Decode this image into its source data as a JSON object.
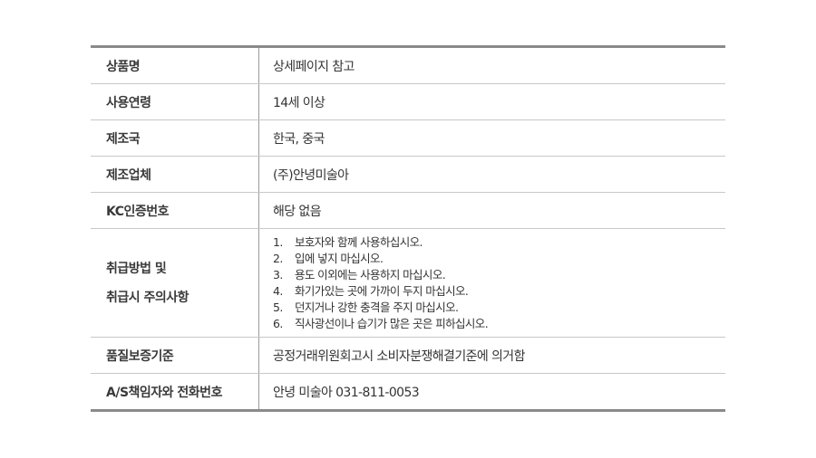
{
  "rows": [
    {
      "label": "상품명",
      "value": "상세페이지 참고"
    },
    {
      "label": "사용연령",
      "value": "14세 이상"
    },
    {
      "label": "제조국",
      "value": "한국, 중국"
    },
    {
      "label": "제조업체",
      "value": "(주)안녕미술아"
    },
    {
      "label": "KC인증번호",
      "value": "해당 없음"
    }
  ],
  "handling": {
    "label_line1": "취급방법 및",
    "label_line2": "취급시 주의사항",
    "items": [
      {
        "num": "1.",
        "text": "보호자와 함께 사용하십시오."
      },
      {
        "num": "2.",
        "text": "입에 넣지 마십시오."
      },
      {
        "num": "3.",
        "text": "용도 이외에는 사용하지 마십시오."
      },
      {
        "num": "4.",
        "text": "화기가있는 곳에 가까이 두지 마십시오."
      },
      {
        "num": "5.",
        "text": "던지거나 강한 충격을 주지 마십시오."
      },
      {
        "num": "6.",
        "text": "직사광선이나 습기가 많은 곳은 피하십시오."
      }
    ]
  },
  "rows_after": [
    {
      "label": "품질보증기준",
      "value": "공정거래위원회고시 소비자분쟁해결기준에 의거함"
    },
    {
      "label": "A/S책임자와 전화번호",
      "value": "안녕 미술아 031-811-0053"
    }
  ]
}
